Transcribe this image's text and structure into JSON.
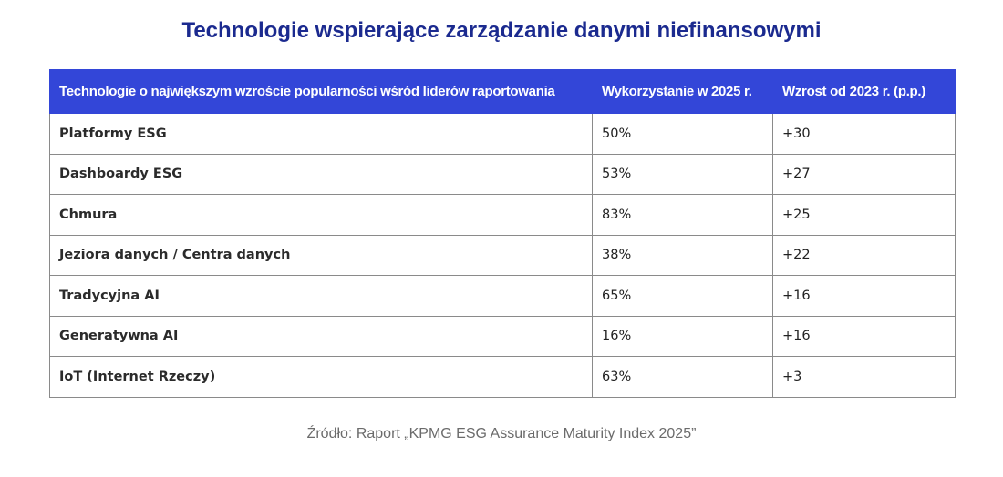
{
  "title": "Technologie wspierające zarządzanie danymi niefinansowymi",
  "table": {
    "header": [
      "Technologie o największym wzroście popularności wśród liderów raportowania",
      "Wykorzystanie w 2025 r.",
      "Wzrost od 2023 r. (p.p.)"
    ],
    "rows": [
      [
        "Platformy ESG",
        "50%",
        "+30"
      ],
      [
        "Dashboardy ESG",
        "53%",
        "+27"
      ],
      [
        "Chmura",
        "83%",
        "+25"
      ],
      [
        "Jeziora danych / Centra danych",
        "38%",
        "+22"
      ],
      [
        "Tradycyjna AI",
        "65%",
        "+16"
      ],
      [
        "Generatywna AI",
        "16%",
        "+16"
      ],
      [
        "IoT (Internet Rzeczy)",
        "63%",
        "+3"
      ]
    ]
  },
  "source": "Źródło: Raport „KPMG ESG Assurance Maturity Index 2025”"
}
